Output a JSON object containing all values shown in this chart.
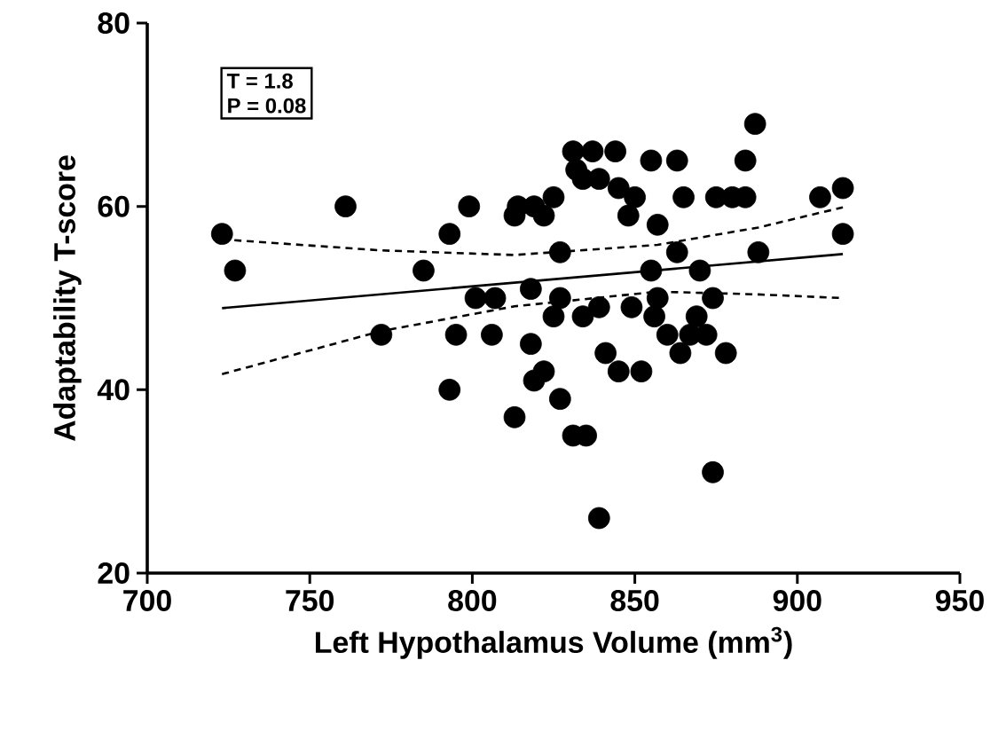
{
  "chart_data": {
    "type": "scatter",
    "xlabel": "Left Hypothalamus Volume (mm$^{3}$)",
    "ylabel": "Adaptability T-score",
    "annotations": [
      "T = 1.8",
      "P = 0.08"
    ],
    "xlim": [
      700,
      950
    ],
    "xticks": [
      700,
      750,
      800,
      850,
      900,
      950
    ],
    "ylim": [
      20,
      80
    ],
    "yticks": [
      20,
      40,
      60,
      80
    ],
    "grid": false,
    "series": [
      {
        "marker": "circle",
        "color": "#000000",
        "x": [
          723,
          727,
          761,
          785,
          772,
          793,
          799,
          793,
          795,
          801,
          807,
          806,
          813,
          814,
          819,
          818,
          818,
          819,
          822,
          813,
          887,
          831,
          837,
          844,
          832,
          834,
          839,
          855,
          863,
          884,
          845,
          850,
          848,
          865,
          875,
          880,
          884,
          822,
          825,
          857,
          907,
          914,
          914,
          827,
          863,
          888,
          855,
          870,
          827,
          825,
          834,
          839,
          849,
          857,
          856,
          874,
          869,
          860,
          867,
          872,
          864,
          878,
          841,
          845,
          852,
          827,
          831,
          835,
          874,
          839
        ],
        "values": [
          57,
          53,
          60,
          53,
          46,
          57,
          60,
          40,
          46,
          50,
          50,
          46,
          59,
          60,
          60,
          51,
          45,
          41,
          42,
          37,
          69,
          66,
          66,
          66,
          64,
          63,
          63,
          65,
          65,
          65,
          62,
          61,
          59,
          61,
          61,
          61,
          61,
          59,
          61,
          58,
          61,
          62,
          57,
          55,
          55,
          55,
          53,
          53,
          50,
          48,
          48,
          49,
          49,
          50,
          48,
          50,
          48,
          46,
          46,
          46,
          44,
          44,
          44,
          42,
          42,
          39,
          35,
          35,
          31,
          26
        ]
      },
      {
        "type": "line",
        "line_style": "solid",
        "color": "#000000",
        "x": [
          723,
          914
        ],
        "values": [
          48.9,
          54.8
        ]
      },
      {
        "type": "line",
        "line_style": "dashed",
        "color": "#000000",
        "x": [
          723,
          772,
          813,
          857,
          888,
          914
        ],
        "values": [
          56.4,
          55.2,
          54.7,
          55.8,
          57.7,
          59.9
        ]
      },
      {
        "type": "line",
        "line_style": "dashed",
        "color": "#000000",
        "x": [
          723,
          772,
          813,
          857,
          888,
          914
        ],
        "values": [
          41.7,
          46.4,
          49.1,
          50.7,
          50.4,
          50.0
        ]
      }
    ]
  }
}
